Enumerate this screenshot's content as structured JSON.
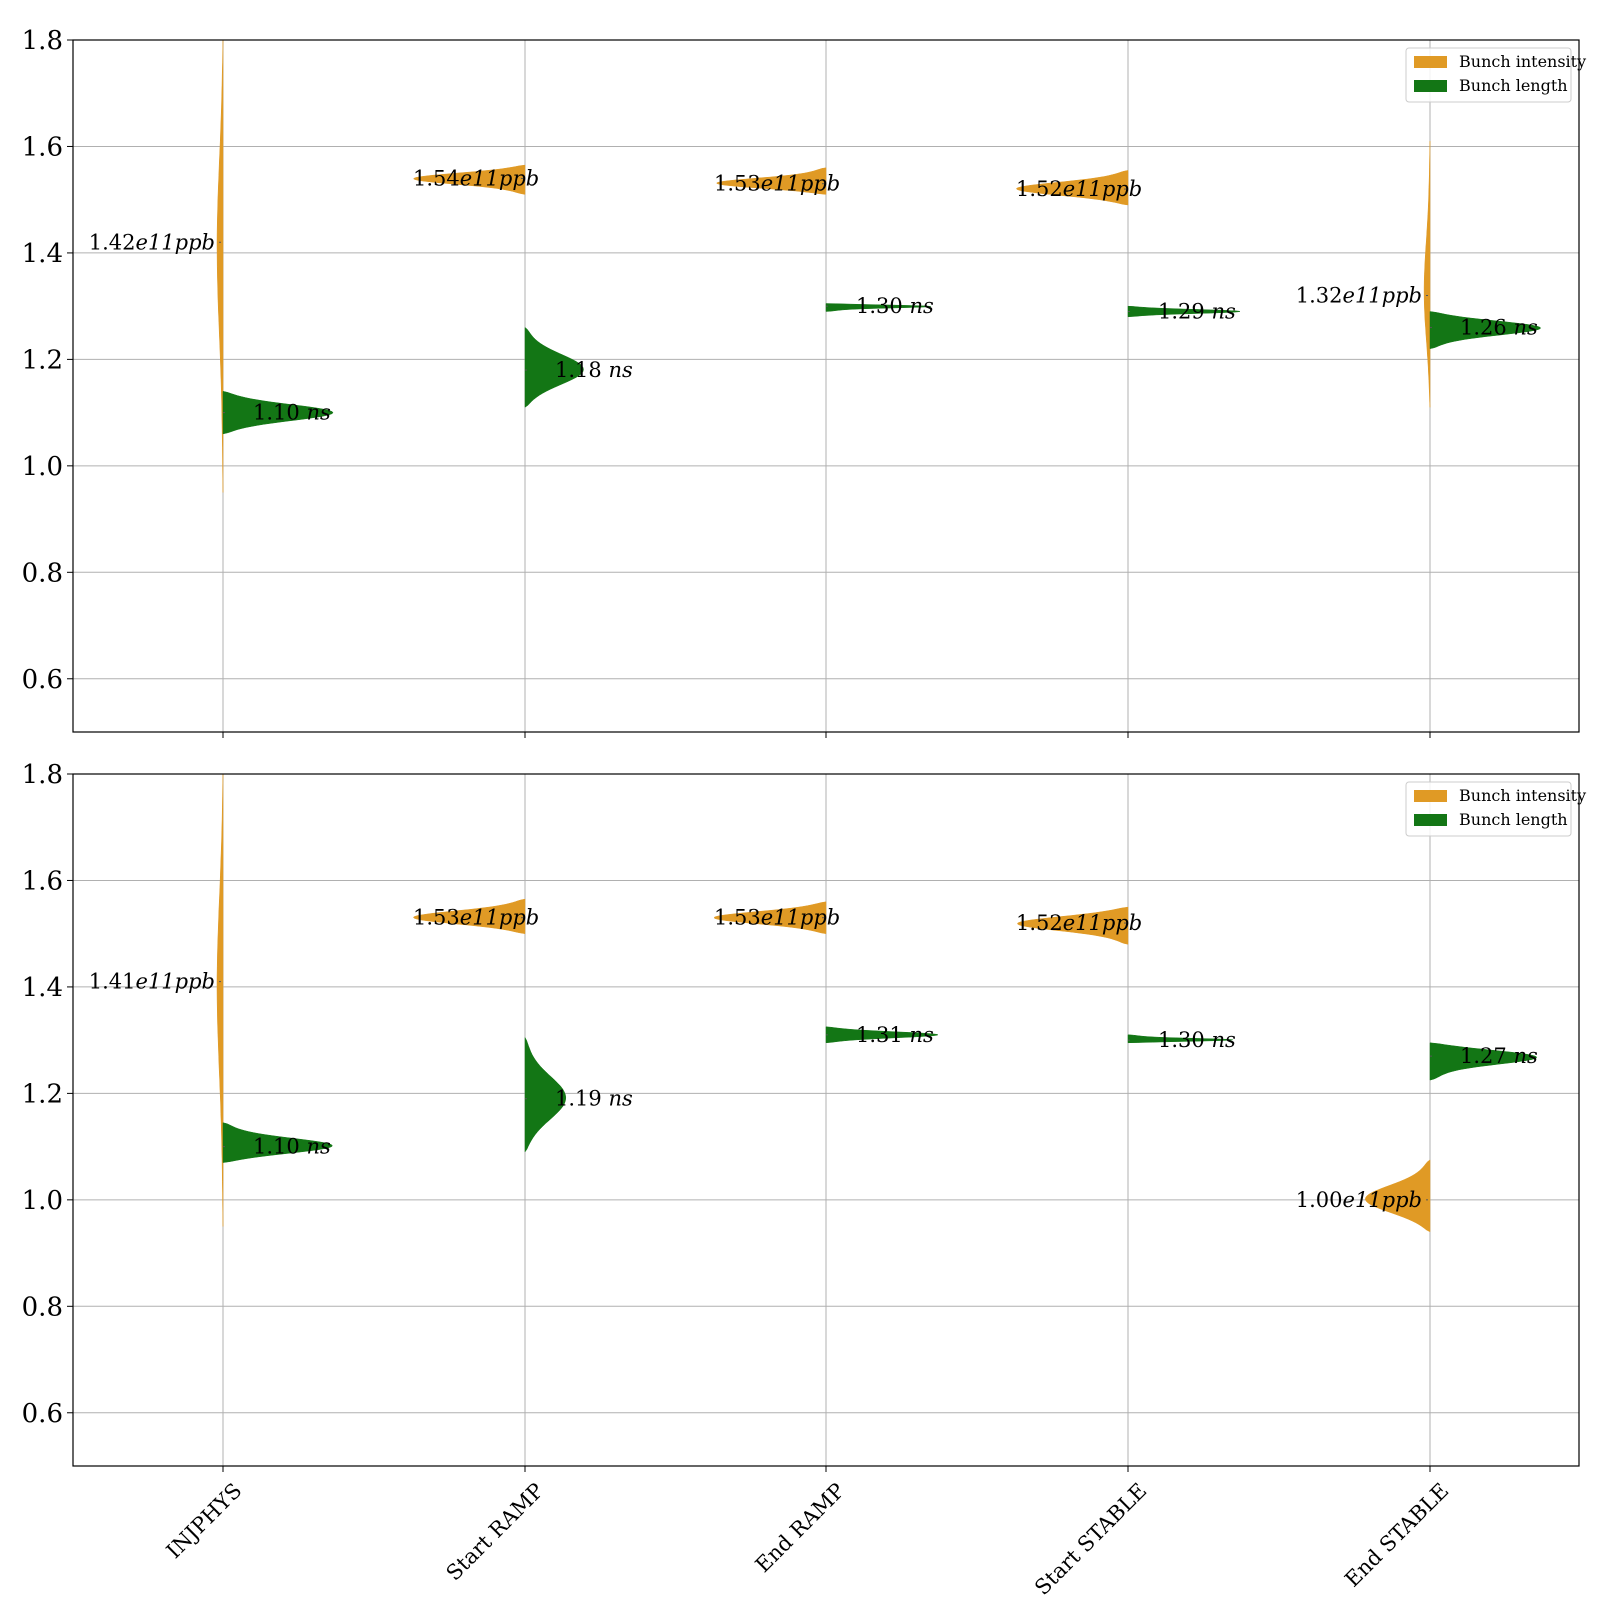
{
  "colors": {
    "intensity": "#e09a25",
    "length": "#137615",
    "grid": "#b0b0b0",
    "axis": "#000000"
  },
  "chart_data": [
    {
      "type": "violin",
      "categories": [
        "INJPHYS",
        "Start RAMP",
        "End RAMP",
        "Start STABLE",
        "End STABLE"
      ],
      "ylim": [
        0.5,
        1.8
      ],
      "yticks": [
        "0.6",
        "0.8",
        "1.0",
        "1.2",
        "1.4",
        "1.6",
        "1.8"
      ],
      "grid": true,
      "legend_position": "top-right",
      "legend": [
        "Bunch intensity",
        "Bunch length"
      ],
      "series": [
        {
          "name": "Bunch intensity",
          "side": "left",
          "color_key": "intensity",
          "medians": [
            1.42,
            1.54,
            1.53,
            1.52,
            1.32
          ],
          "ranges": [
            [
              0.95,
              1.8
            ],
            [
              1.51,
              1.565
            ],
            [
              1.51,
              1.56
            ],
            [
              1.49,
              1.555
            ],
            [
              1.11,
              1.61
            ]
          ],
          "annotations": [
            "1.42e11ppb",
            "1.54e11ppb",
            "1.53e11ppb",
            "1.52e11ppb",
            "1.32e11ppb"
          ]
        },
        {
          "name": "Bunch length",
          "side": "right",
          "color_key": "length",
          "medians": [
            1.1,
            1.18,
            1.3,
            1.29,
            1.26
          ],
          "ranges": [
            [
              1.06,
              1.14
            ],
            [
              1.11,
              1.26
            ],
            [
              1.29,
              1.305
            ],
            [
              1.28,
              1.3
            ],
            [
              1.22,
              1.29
            ]
          ],
          "annotations": [
            "1.10 ns",
            "1.18 ns",
            "1.30 ns",
            "1.29 ns",
            "1.26 ns"
          ]
        }
      ]
    },
    {
      "type": "violin",
      "categories": [
        "INJPHYS",
        "Start RAMP",
        "End RAMP",
        "Start STABLE",
        "End STABLE"
      ],
      "ylim": [
        0.5,
        1.8
      ],
      "yticks": [
        "0.6",
        "0.8",
        "1.0",
        "1.2",
        "1.4",
        "1.6",
        "1.8"
      ],
      "grid": true,
      "legend_position": "top-right",
      "legend": [
        "Bunch intensity",
        "Bunch length"
      ],
      "series": [
        {
          "name": "Bunch intensity",
          "side": "left",
          "color_key": "intensity",
          "medians": [
            1.41,
            1.53,
            1.53,
            1.52,
            1.0
          ],
          "ranges": [
            [
              0.95,
              1.8
            ],
            [
              1.5,
              1.565
            ],
            [
              1.5,
              1.56
            ],
            [
              1.48,
              1.55
            ],
            [
              0.94,
              1.075
            ]
          ],
          "annotations": [
            "1.41e11ppb",
            "1.53e11ppb",
            "1.53e11ppb",
            "1.52e11ppb",
            "1.00e11ppb"
          ]
        },
        {
          "name": "Bunch length",
          "side": "right",
          "color_key": "length",
          "medians": [
            1.1,
            1.19,
            1.31,
            1.3,
            1.27
          ],
          "ranges": [
            [
              1.07,
              1.145
            ],
            [
              1.09,
              1.305
            ],
            [
              1.295,
              1.325
            ],
            [
              1.295,
              1.31
            ],
            [
              1.225,
              1.295
            ]
          ],
          "annotations": [
            "1.10 ns",
            "1.19 ns",
            "1.31 ns",
            "1.30 ns",
            "1.27 ns"
          ]
        }
      ]
    }
  ]
}
